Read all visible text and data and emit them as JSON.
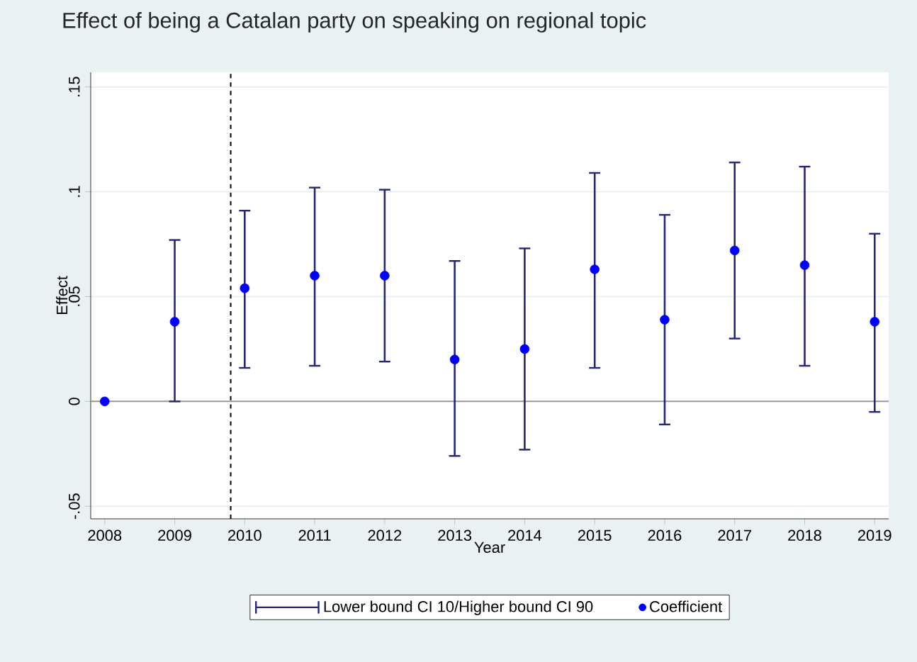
{
  "chart_data": {
    "type": "scatter",
    "title": "Effect of being a Catalan party on speaking on regional topic",
    "xlabel": "Year",
    "ylabel": "Effect",
    "annotations": [
      "Lower bound CI 10/Higher bound CI 90"
    ],
    "x": [
      2008,
      2009,
      2010,
      2011,
      2012,
      2013,
      2014,
      2015,
      2016,
      2017,
      2018,
      2019
    ],
    "series": [
      {
        "name": "Coefficient",
        "color": "#0000ff",
        "marker": "circle",
        "values": [
          0,
          0.038,
          0.054,
          0.06,
          0.06,
          0.02,
          0.025,
          0.063,
          0.039,
          0.072,
          0.065,
          0.038
        ],
        "errors": [
          null,
          [
            0,
            0.077
          ],
          [
            0.016,
            0.091
          ],
          [
            0.017,
            0.102
          ],
          [
            0.019,
            0.101
          ],
          [
            -0.026,
            0.067
          ],
          [
            -0.023,
            0.073
          ],
          [
            0.016,
            0.109
          ],
          [
            -0.011,
            0.089
          ],
          [
            0.03,
            0.114
          ],
          [
            0.017,
            0.112
          ],
          [
            -0.005,
            0.08
          ]
        ]
      }
    ],
    "xlim": [
      2007.8,
      2019.2
    ],
    "ylim": [
      -0.056,
      0.157
    ],
    "xticks": [
      2008,
      2009,
      2010,
      2011,
      2012,
      2013,
      2014,
      2015,
      2016,
      2017,
      2018,
      2019
    ],
    "yticks": [
      {
        "value": -0.05,
        "label": "-.05"
      },
      0,
      {
        "value": 0.05,
        "label": ".05"
      },
      {
        "value": 0.1,
        "label": ".1"
      },
      {
        "value": 0.15,
        "label": ".15"
      }
    ],
    "ref_lines": [
      {
        "axis": "x",
        "value": 2009.8,
        "color": "#000000",
        "line_style": "dashed"
      },
      {
        "axis": "y",
        "value": 0,
        "color": "#999999",
        "line_style": "solid"
      }
    ],
    "grid": "y",
    "legend": "bottom"
  }
}
